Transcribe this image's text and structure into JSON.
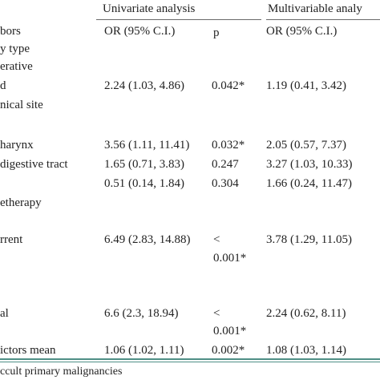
{
  "header": {
    "univariate": "Univariate analysis",
    "multivariable": "Multivariable analy"
  },
  "subheader": {
    "predictors": "bors",
    "or_uni": "OR (95% C.I.)",
    "p": "p",
    "or_multi": "OR (95% C.I.)"
  },
  "rows": [
    {
      "label": "y type"
    },
    {
      "label": "erative"
    },
    {
      "label": "d",
      "or_uni": "2.24 (1.03, 4.86)",
      "p": "0.042*",
      "or_multi": "1.19 (0.41, 3.42)"
    },
    {
      "label": "nical site"
    },
    {
      "label": "harynx",
      "or_uni": "3.56 (1.11, 11.41)",
      "p": "0.032*",
      "or_multi": "2.05 (0.57, 7.37)"
    },
    {
      "label": "digestive tract",
      "or_uni": "1.65 (0.71, 3.83)",
      "p": "0.247",
      "or_multi": "3.27 (1.03, 10.33)"
    },
    {
      "label": "",
      "or_uni": "0.51 (0.14, 1.84)",
      "p": "0.304",
      "or_multi": "1.66 (0.24, 11.47)"
    },
    {
      "label": "etherapy"
    },
    {
      "label": "rrent",
      "or_uni": "6.49 (2.83, 14.88)",
      "p": "<",
      "p2": "0.001*",
      "or_multi": "3.78 (1.29, 11.05)"
    },
    {
      "label": "al",
      "or_uni": "6.6 (2.3, 18.94)",
      "p": "<",
      "p2": "0.001*",
      "or_multi": "2.24 (0.62, 8.11)"
    },
    {
      "label": "ictors mean",
      "or_uni": "1.06 (1.02, 1.11)",
      "p": "0.002*",
      "or_multi": "1.08 (1.03, 1.14)"
    }
  ],
  "footnote": "ccult primary malignancies"
}
